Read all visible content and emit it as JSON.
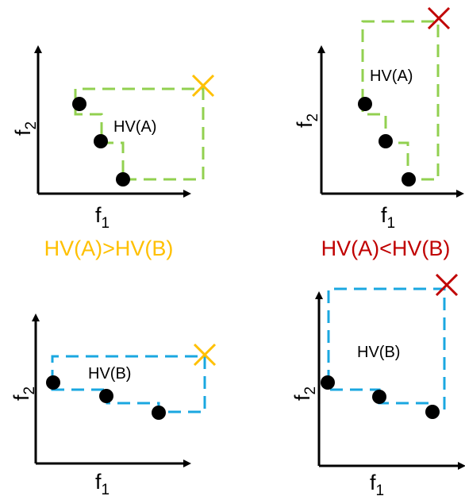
{
  "colors": {
    "green": "#92D050",
    "blue": "#1AA7E0",
    "gold": "#FFC000",
    "red": "#C00000",
    "point": "#000000"
  },
  "axes": {
    "x_main": "f",
    "x_sub": "1",
    "y_main": "f",
    "y_sub": "2"
  },
  "labels": {
    "hv_a": "HV(A)",
    "hv_b": "HV(B)",
    "compare_left": "HV(A)>HV(B)",
    "compare_right": "HV(A)<HV(B)"
  },
  "icons": {
    "reference_point": "x-mark-icon",
    "solution": "filled-circle-icon"
  },
  "panels": [
    {
      "id": "top-left",
      "set": "A",
      "reference": "near",
      "front_color": "green",
      "ref_color": "gold"
    },
    {
      "id": "top-right",
      "set": "A",
      "reference": "far",
      "front_color": "green",
      "ref_color": "red"
    },
    {
      "id": "bottom-left",
      "set": "B",
      "reference": "near",
      "front_color": "blue",
      "ref_color": "gold"
    },
    {
      "id": "bottom-right",
      "set": "B",
      "reference": "far",
      "front_color": "blue",
      "ref_color": "red"
    }
  ]
}
